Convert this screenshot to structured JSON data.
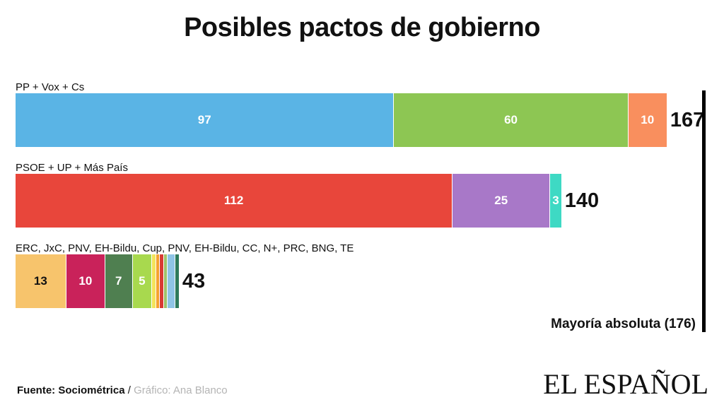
{
  "title": "Posibles pactos de gobierno",
  "chart_data": {
    "type": "bar",
    "orientation": "horizontal-stacked",
    "title": "Posibles pactos de gobierno",
    "xlim": [
      0,
      176
    ],
    "coalitions": [
      {
        "label": "PP + Vox + Cs",
        "total": "167",
        "segments": [
          {
            "party": "PP",
            "value": 97,
            "label": "97",
            "color": "#5ab4e5"
          },
          {
            "party": "Vox",
            "value": 60,
            "label": "60",
            "color": "#8dc653"
          },
          {
            "party": "Cs",
            "value": 10,
            "label": "10",
            "color": "#f98f5e"
          }
        ]
      },
      {
        "label": "PSOE + UP + Más País",
        "total": "140",
        "segments": [
          {
            "party": "PSOE",
            "value": 112,
            "label": "112",
            "color": "#e8463b"
          },
          {
            "party": "UP",
            "value": 25,
            "label": "25",
            "color": "#a878c8"
          },
          {
            "party": "Más País",
            "value": 3,
            "label": "3",
            "color": "#3ed9c4"
          }
        ]
      },
      {
        "label": "ERC, JxC, PNV, EH-Bildu, Cup, PNV, EH-Bildu, CC, N+, PRC, BNG, TE",
        "total": "43",
        "segments": [
          {
            "party": "ERC",
            "value": 13,
            "label": "13",
            "color": "#f7c46c",
            "dark": true
          },
          {
            "party": "JxC",
            "value": 10,
            "label": "10",
            "color": "#c9225a"
          },
          {
            "party": "PNV",
            "value": 7,
            "label": "7",
            "color": "#4f7f50"
          },
          {
            "party": "EH-Bildu",
            "value": 5,
            "label": "5",
            "color": "#a8d94e"
          },
          {
            "party": "Cup",
            "value": 1,
            "label": "",
            "color": "#f3e35a"
          },
          {
            "party": "CC",
            "value": 1,
            "label": "",
            "color": "#f4a12e"
          },
          {
            "party": "N+",
            "value": 1,
            "label": "",
            "color": "#d83a33"
          },
          {
            "party": "PRC",
            "value": 1,
            "label": "",
            "color": "#9fc36a"
          },
          {
            "party": "BNG",
            "value": 2,
            "label": "",
            "color": "#8fc4e6"
          },
          {
            "party": "TE",
            "value": 1,
            "label": "",
            "color": "#2e7a5c"
          }
        ]
      }
    ],
    "threshold": {
      "value": 176,
      "label": "Mayoría absoluta (176)"
    }
  },
  "footer": {
    "source_label": "Fuente: Sociométrica",
    "separator": " / ",
    "credit": "Gráfico: Ana Blanco",
    "logo": "EL ESPAÑOL"
  }
}
